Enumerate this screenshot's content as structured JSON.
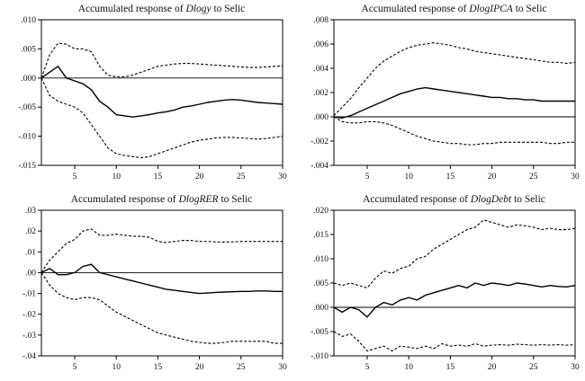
{
  "background_color": "#ffffff",
  "line_color": "#000000",
  "charts": [
    {
      "id": "dlogy",
      "type": "line",
      "title_prefix": "Accumulated response of ",
      "title_var": "Dlogy",
      "title_suffix": " to Selic",
      "xlabel": "",
      "ylabel": "",
      "xlim": [
        1,
        30
      ],
      "ylim": [
        -0.015,
        0.01
      ],
      "xticks": [
        5,
        10,
        15,
        20,
        25,
        30
      ],
      "yticks": [
        0.01,
        0.005,
        0.0,
        -0.005,
        -0.01,
        -0.015
      ],
      "ytick_labels": [
        ".010",
        ".005",
        ".000",
        "-.005",
        "-.010",
        "-.015"
      ],
      "zero_line": true,
      "series": [
        {
          "name": "response",
          "style": "solid",
          "values": [
            0.0,
            0.001,
            0.002,
            0.0,
            -0.0005,
            -0.001,
            -0.002,
            -0.004,
            -0.005,
            -0.0063,
            -0.0065,
            -0.0067,
            -0.0065,
            -0.0063,
            -0.006,
            -0.0058,
            -0.0055,
            -0.005,
            -0.0048,
            -0.0045,
            -0.0042,
            -0.004,
            -0.0038,
            -0.0037,
            -0.0038,
            -0.004,
            -0.0042,
            -0.0043,
            -0.0044,
            -0.0045
          ]
        },
        {
          "name": "upper_band",
          "style": "dashed",
          "values": [
            0.0,
            0.004,
            0.006,
            0.0058,
            0.005,
            0.005,
            0.0045,
            0.002,
            0.0005,
            0.0002,
            0.0002,
            0.0005,
            0.001,
            0.0015,
            0.002,
            0.0022,
            0.0024,
            0.0025,
            0.0025,
            0.0024,
            0.0023,
            0.0022,
            0.0021,
            0.002,
            0.0019,
            0.0018,
            0.0018,
            0.0019,
            0.002,
            0.0021
          ]
        },
        {
          "name": "lower_band",
          "style": "dashed",
          "values": [
            0.0,
            -0.003,
            -0.004,
            -0.0045,
            -0.005,
            -0.006,
            -0.008,
            -0.01,
            -0.012,
            -0.013,
            -0.0133,
            -0.0135,
            -0.0137,
            -0.0135,
            -0.013,
            -0.0125,
            -0.012,
            -0.0115,
            -0.011,
            -0.0107,
            -0.0105,
            -0.0103,
            -0.0102,
            -0.0102,
            -0.0103,
            -0.0104,
            -0.0105,
            -0.0104,
            -0.0102,
            -0.01
          ]
        }
      ]
    },
    {
      "id": "dlogipca",
      "type": "line",
      "title_prefix": "Accumulated response of ",
      "title_var": "DlogIPCA",
      "title_suffix": " to Selic",
      "xlabel": "",
      "ylabel": "",
      "xlim": [
        1,
        30
      ],
      "ylim": [
        -0.004,
        0.008
      ],
      "xticks": [
        5,
        10,
        15,
        20,
        25,
        30
      ],
      "yticks": [
        0.008,
        0.006,
        0.004,
        0.002,
        0.0,
        -0.002,
        -0.004
      ],
      "ytick_labels": [
        ".008",
        ".006",
        ".004",
        ".002",
        ".000",
        "-.002",
        "-.004"
      ],
      "zero_line": true,
      "series": [
        {
          "name": "response",
          "style": "solid",
          "values": [
            0.0,
            -0.0001,
            0.0001,
            0.0004,
            0.0007,
            0.001,
            0.0013,
            0.0016,
            0.0019,
            0.0021,
            0.0023,
            0.0024,
            0.0023,
            0.0022,
            0.0021,
            0.002,
            0.0019,
            0.0018,
            0.0017,
            0.0016,
            0.0016,
            0.0015,
            0.0015,
            0.0014,
            0.0014,
            0.0013,
            0.0013,
            0.0013,
            0.0013,
            0.0013
          ]
        },
        {
          "name": "upper_band",
          "style": "dashed",
          "values": [
            0.0001,
            0.0008,
            0.0015,
            0.0024,
            0.0032,
            0.004,
            0.0046,
            0.005,
            0.0054,
            0.0057,
            0.0059,
            0.006,
            0.0061,
            0.006,
            0.0059,
            0.0057,
            0.0056,
            0.0054,
            0.0053,
            0.0052,
            0.0051,
            0.005,
            0.0049,
            0.0048,
            0.0047,
            0.0046,
            0.0045,
            0.0045,
            0.0044,
            0.0045
          ]
        },
        {
          "name": "lower_band",
          "style": "dashed",
          "values": [
            0.0,
            -0.0004,
            -0.0005,
            -0.0005,
            -0.0004,
            -0.0004,
            -0.0005,
            -0.0007,
            -0.001,
            -0.0013,
            -0.0016,
            -0.0018,
            -0.002,
            -0.0021,
            -0.0022,
            -0.0022,
            -0.0023,
            -0.0023,
            -0.0022,
            -0.0022,
            -0.0021,
            -0.0021,
            -0.0021,
            -0.0021,
            -0.0021,
            -0.0021,
            -0.0022,
            -0.0022,
            -0.0021,
            -0.0021
          ]
        }
      ]
    },
    {
      "id": "dlogrer",
      "type": "line",
      "title_prefix": "Accumulated response of ",
      "title_var": "DlogRER",
      "title_suffix": " to Selic",
      "xlabel": "",
      "ylabel": "",
      "xlim": [
        1,
        30
      ],
      "ylim": [
        -0.04,
        0.03
      ],
      "xticks": [
        5,
        10,
        15,
        20,
        25,
        30
      ],
      "yticks": [
        0.03,
        0.02,
        0.01,
        0.0,
        -0.01,
        -0.02,
        -0.03,
        -0.04
      ],
      "ytick_labels": [
        ".03",
        ".02",
        ".01",
        ".00",
        "-.01",
        "-.02",
        "-.03",
        "-.04"
      ],
      "zero_line": true,
      "series": [
        {
          "name": "response",
          "style": "solid",
          "values": [
            0.0,
            0.002,
            -0.001,
            -0.001,
            0.0,
            0.003,
            0.004,
            0.0,
            -0.001,
            -0.002,
            -0.003,
            -0.004,
            -0.005,
            -0.006,
            -0.007,
            -0.008,
            -0.0085,
            -0.009,
            -0.0095,
            -0.01,
            -0.0098,
            -0.0095,
            -0.0093,
            -0.0092,
            -0.009,
            -0.009,
            -0.0088,
            -0.0088,
            -0.009,
            -0.009
          ]
        },
        {
          "name": "upper_band",
          "style": "dashed",
          "values": [
            0.0,
            0.006,
            0.01,
            0.014,
            0.016,
            0.02,
            0.021,
            0.018,
            0.018,
            0.0185,
            0.018,
            0.0175,
            0.0175,
            0.017,
            0.015,
            0.0145,
            0.015,
            0.0155,
            0.0155,
            0.015,
            0.015,
            0.0148,
            0.0147,
            0.0148,
            0.015,
            0.015,
            0.015,
            0.015,
            0.015,
            0.015
          ]
        },
        {
          "name": "lower_band",
          "style": "dashed",
          "values": [
            0.0,
            -0.006,
            -0.01,
            -0.012,
            -0.013,
            -0.012,
            -0.012,
            -0.013,
            -0.016,
            -0.019,
            -0.021,
            -0.023,
            -0.025,
            -0.027,
            -0.029,
            -0.03,
            -0.031,
            -0.032,
            -0.033,
            -0.0335,
            -0.034,
            -0.034,
            -0.0335,
            -0.033,
            -0.033,
            -0.033,
            -0.033,
            -0.033,
            -0.034,
            -0.034
          ]
        }
      ]
    },
    {
      "id": "dlogdebt",
      "type": "line",
      "title_prefix": "Accumulated response of ",
      "title_var": "DlogDebt",
      "title_suffix": " to Selic",
      "xlabel": "",
      "ylabel": "",
      "xlim": [
        1,
        30
      ],
      "ylim": [
        -0.01,
        0.02
      ],
      "xticks": [
        5,
        10,
        15,
        20,
        25,
        30
      ],
      "yticks": [
        0.02,
        0.015,
        0.01,
        0.005,
        0.0,
        -0.005,
        -0.01
      ],
      "ytick_labels": [
        ".020",
        ".015",
        ".010",
        ".005",
        ".000",
        "-.005",
        "-.010"
      ],
      "zero_line": true,
      "series": [
        {
          "name": "response",
          "style": "solid",
          "values": [
            0.0,
            -0.001,
            0.0,
            -0.0005,
            -0.002,
            0.0,
            0.001,
            0.0005,
            0.0015,
            0.002,
            0.0015,
            0.0025,
            0.003,
            0.0035,
            0.004,
            0.0045,
            0.004,
            0.005,
            0.0045,
            0.005,
            0.0048,
            0.0045,
            0.005,
            0.0048,
            0.0045,
            0.0042,
            0.0045,
            0.0043,
            0.0042,
            0.0045
          ]
        },
        {
          "name": "upper_band",
          "style": "dashed",
          "values": [
            0.005,
            0.0045,
            0.005,
            0.0045,
            0.004,
            0.006,
            0.0075,
            0.007,
            0.008,
            0.0085,
            0.01,
            0.0105,
            0.012,
            0.013,
            0.014,
            0.015,
            0.016,
            0.0165,
            0.018,
            0.0175,
            0.017,
            0.0165,
            0.017,
            0.0168,
            0.0165,
            0.016,
            0.0163,
            0.016,
            0.016,
            0.0163
          ]
        },
        {
          "name": "lower_band",
          "style": "dashed",
          "values": [
            -0.005,
            -0.006,
            -0.0055,
            -0.007,
            -0.009,
            -0.0085,
            -0.008,
            -0.009,
            -0.008,
            -0.0082,
            -0.0085,
            -0.008,
            -0.0085,
            -0.0075,
            -0.008,
            -0.0078,
            -0.008,
            -0.0075,
            -0.008,
            -0.0078,
            -0.0077,
            -0.0078,
            -0.0076,
            -0.0077,
            -0.0078,
            -0.0077,
            -0.0078,
            -0.0077,
            -0.0078,
            -0.0077
          ]
        }
      ]
    }
  ]
}
